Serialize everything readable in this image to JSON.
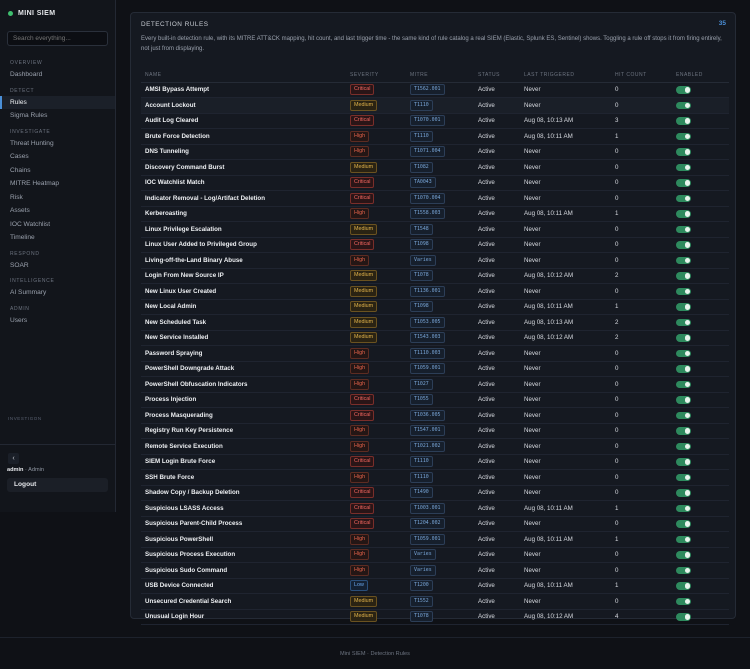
{
  "app": {
    "name": "MINI SIEM",
    "brand_color": "#3fbf6f",
    "accent": "#4a8fd8"
  },
  "search": {
    "placeholder": "Search everything..."
  },
  "nav": {
    "overview": {
      "label": "OVERVIEW",
      "items": [
        "Dashboard"
      ]
    },
    "detect": {
      "label": "DETECT",
      "items": [
        "Rules",
        "Sigma Rules"
      ]
    },
    "investigate": {
      "label": "INVESTIGATE",
      "items": [
        "Threat Hunting",
        "Cases",
        "Chains",
        "MITRE Heatmap",
        "Risk",
        "Assets",
        "IOC Watchlist",
        "Timeline"
      ]
    },
    "respond": {
      "label": "RESPOND",
      "items": [
        "SOAR"
      ]
    },
    "intelligence": {
      "label": "INTELLIGENCE",
      "items": [
        "AI Summary"
      ]
    },
    "admin": {
      "label": "ADMIN",
      "items": [
        "Users"
      ]
    },
    "active": "Rules"
  },
  "sidebar_foot": {
    "label": "INVESTIGON",
    "collapse_icon": "chevron-left-icon",
    "collapse_glyph": "‹",
    "user": "admin",
    "role": "· Admin",
    "logout": "Logout"
  },
  "panel": {
    "title": "DETECTION RULES",
    "count": "35",
    "description": "Every built-in detection rule, with its MITRE ATT&CK mapping, hit count, and last trigger time - the same kind of rule catalog a real SIEM (Elastic, Splunk ES, Sentinel) shows. Toggling a rule off stops it from firing entirely, not just from displaying."
  },
  "table": {
    "headers": {
      "name": "NAME",
      "severity": "SEVERITY",
      "mitre": "MITRE",
      "status": "STATUS",
      "last": "LAST TRIGGERED",
      "hits": "HIT COUNT",
      "enabled": "ENABLED"
    },
    "rows": [
      {
        "name": "AMSI Bypass Attempt",
        "severity": "Critical",
        "mitre": "T1562.001",
        "status": "Active",
        "last": "Never",
        "hits": "0"
      },
      {
        "name": "Account Lockout",
        "severity": "Medium",
        "mitre": "T1110",
        "status": "Active",
        "last": "Never",
        "hits": "0"
      },
      {
        "name": "Audit Log Cleared",
        "severity": "Critical",
        "mitre": "T1070.001",
        "status": "Active",
        "last": "Aug 08, 10:13 AM",
        "hits": "3"
      },
      {
        "name": "Brute Force Detection",
        "severity": "High",
        "mitre": "T1110",
        "status": "Active",
        "last": "Aug 08, 10:11 AM",
        "hits": "1"
      },
      {
        "name": "DNS Tunneling",
        "severity": "High",
        "mitre": "T1071.004",
        "status": "Active",
        "last": "Never",
        "hits": "0"
      },
      {
        "name": "Discovery Command Burst",
        "severity": "Medium",
        "mitre": "T1082",
        "status": "Active",
        "last": "Never",
        "hits": "0"
      },
      {
        "name": "IOC Watchlist Match",
        "severity": "Critical",
        "mitre": "TA0043",
        "status": "Active",
        "last": "Never",
        "hits": "0"
      },
      {
        "name": "Indicator Removal - Log/Artifact Deletion",
        "severity": "Critical",
        "mitre": "T1070.004",
        "status": "Active",
        "last": "Never",
        "hits": "0"
      },
      {
        "name": "Kerberoasting",
        "severity": "High",
        "mitre": "T1558.003",
        "status": "Active",
        "last": "Aug 08, 10:11 AM",
        "hits": "1"
      },
      {
        "name": "Linux Privilege Escalation",
        "severity": "Medium",
        "mitre": "T1548",
        "status": "Active",
        "last": "Never",
        "hits": "0"
      },
      {
        "name": "Linux User Added to Privileged Group",
        "severity": "Critical",
        "mitre": "T1098",
        "status": "Active",
        "last": "Never",
        "hits": "0"
      },
      {
        "name": "Living-off-the-Land Binary Abuse",
        "severity": "High",
        "mitre": "Varies",
        "status": "Active",
        "last": "Never",
        "hits": "0"
      },
      {
        "name": "Login From New Source IP",
        "severity": "Medium",
        "mitre": "T1078",
        "status": "Active",
        "last": "Aug 08, 10:12 AM",
        "hits": "2"
      },
      {
        "name": "New Linux User Created",
        "severity": "Medium",
        "mitre": "T1136.001",
        "status": "Active",
        "last": "Never",
        "hits": "0"
      },
      {
        "name": "New Local Admin",
        "severity": "Medium",
        "mitre": "T1098",
        "status": "Active",
        "last": "Aug 08, 10:11 AM",
        "hits": "1"
      },
      {
        "name": "New Scheduled Task",
        "severity": "Medium",
        "mitre": "T1053.005",
        "status": "Active",
        "last": "Aug 08, 10:13 AM",
        "hits": "2"
      },
      {
        "name": "New Service Installed",
        "severity": "Medium",
        "mitre": "T1543.003",
        "status": "Active",
        "last": "Aug 08, 10:12 AM",
        "hits": "2"
      },
      {
        "name": "Password Spraying",
        "severity": "High",
        "mitre": "T1110.003",
        "status": "Active",
        "last": "Never",
        "hits": "0"
      },
      {
        "name": "PowerShell Downgrade Attack",
        "severity": "High",
        "mitre": "T1059.001",
        "status": "Active",
        "last": "Never",
        "hits": "0"
      },
      {
        "name": "PowerShell Obfuscation Indicators",
        "severity": "High",
        "mitre": "T1027",
        "status": "Active",
        "last": "Never",
        "hits": "0"
      },
      {
        "name": "Process Injection",
        "severity": "Critical",
        "mitre": "T1055",
        "status": "Active",
        "last": "Never",
        "hits": "0"
      },
      {
        "name": "Process Masquerading",
        "severity": "Critical",
        "mitre": "T1036.005",
        "status": "Active",
        "last": "Never",
        "hits": "0"
      },
      {
        "name": "Registry Run Key Persistence",
        "severity": "High",
        "mitre": "T1547.001",
        "status": "Active",
        "last": "Never",
        "hits": "0"
      },
      {
        "name": "Remote Service Execution",
        "severity": "High",
        "mitre": "T1021.002",
        "status": "Active",
        "last": "Never",
        "hits": "0"
      },
      {
        "name": "SIEM Login Brute Force",
        "severity": "Critical",
        "mitre": "T1110",
        "status": "Active",
        "last": "Never",
        "hits": "0"
      },
      {
        "name": "SSH Brute Force",
        "severity": "High",
        "mitre": "T1110",
        "status": "Active",
        "last": "Never",
        "hits": "0"
      },
      {
        "name": "Shadow Copy / Backup Deletion",
        "severity": "Critical",
        "mitre": "T1490",
        "status": "Active",
        "last": "Never",
        "hits": "0"
      },
      {
        "name": "Suspicious LSASS Access",
        "severity": "Critical",
        "mitre": "T1003.001",
        "status": "Active",
        "last": "Aug 08, 10:11 AM",
        "hits": "1"
      },
      {
        "name": "Suspicious Parent-Child Process",
        "severity": "Critical",
        "mitre": "T1204.002",
        "status": "Active",
        "last": "Never",
        "hits": "0"
      },
      {
        "name": "Suspicious PowerShell",
        "severity": "High",
        "mitre": "T1059.001",
        "status": "Active",
        "last": "Aug 08, 10:11 AM",
        "hits": "1"
      },
      {
        "name": "Suspicious Process Execution",
        "severity": "High",
        "mitre": "Varies",
        "status": "Active",
        "last": "Never",
        "hits": "0"
      },
      {
        "name": "Suspicious Sudo Command",
        "severity": "High",
        "mitre": "Varies",
        "status": "Active",
        "last": "Never",
        "hits": "0"
      },
      {
        "name": "USB Device Connected",
        "severity": "Low",
        "mitre": "T1200",
        "status": "Active",
        "last": "Aug 08, 10:11 AM",
        "hits": "1"
      },
      {
        "name": "Unsecured Credential Search",
        "severity": "Medium",
        "mitre": "T1552",
        "status": "Active",
        "last": "Never",
        "hits": "0"
      },
      {
        "name": "Unusual Login Hour",
        "severity": "Medium",
        "mitre": "T1078",
        "status": "Active",
        "last": "Aug 08, 10:12 AM",
        "hits": "4"
      }
    ],
    "enabled_color": "#2e8a5e"
  },
  "footer": "Mini SIEM · Detection Rules"
}
